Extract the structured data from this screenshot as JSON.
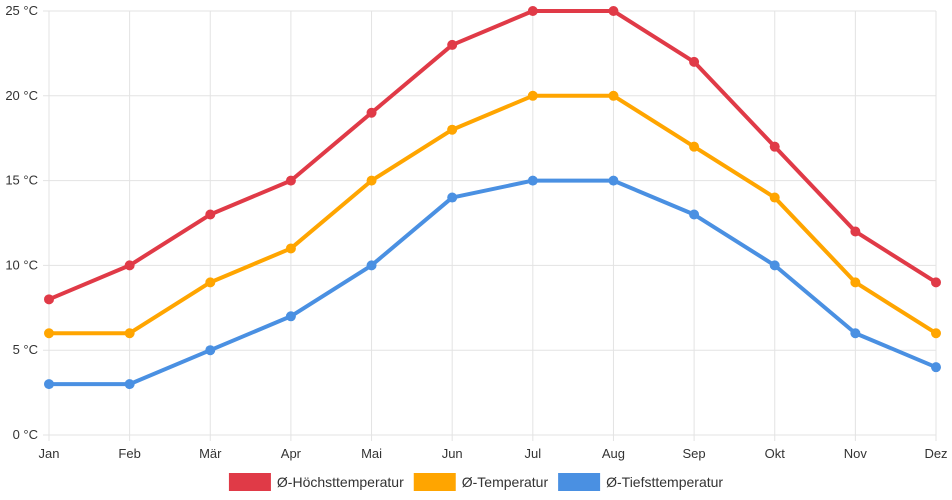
{
  "chart_data": {
    "type": "line",
    "categories": [
      "Jan",
      "Feb",
      "Mär",
      "Apr",
      "Mai",
      "Jun",
      "Jul",
      "Aug",
      "Sep",
      "Okt",
      "Nov",
      "Dez"
    ],
    "y_tick_labels": [
      "0 °C",
      "5 °C",
      "10 °C",
      "15 °C",
      "20 °C",
      "25 °C"
    ],
    "y_ticks": [
      0,
      5,
      10,
      15,
      20,
      25
    ],
    "ylim": [
      0,
      25
    ],
    "grid": true,
    "legend_position": "bottom",
    "series": [
      {
        "name": "Ø-Höchsttemperatur",
        "color": "#e03a47",
        "values": [
          8,
          10,
          13,
          15,
          19,
          23,
          25,
          25,
          22,
          17,
          12,
          9
        ]
      },
      {
        "name": "Ø-Temperatur",
        "color": "#ffa500",
        "values": [
          6,
          6,
          9,
          11,
          15,
          18,
          20,
          20,
          17,
          14,
          9,
          6
        ]
      },
      {
        "name": "Ø-Tiefsttemperatur",
        "color": "#4a90e2",
        "values": [
          3,
          3,
          5,
          7,
          10,
          14,
          15,
          15,
          13,
          10,
          6,
          4
        ]
      }
    ]
  }
}
